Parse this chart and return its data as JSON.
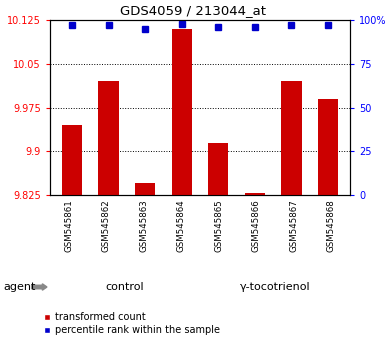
{
  "title": "GDS4059 / 213044_at",
  "samples": [
    "GSM545861",
    "GSM545862",
    "GSM545863",
    "GSM545864",
    "GSM545865",
    "GSM545866",
    "GSM545867",
    "GSM545868"
  ],
  "red_values": [
    9.945,
    10.02,
    9.845,
    10.11,
    9.915,
    9.828,
    10.02,
    9.99
  ],
  "blue_values": [
    97,
    97,
    95,
    98,
    96,
    96,
    97,
    97
  ],
  "ylim_left": [
    9.825,
    10.125
  ],
  "ylim_right": [
    0,
    100
  ],
  "yticks_left": [
    9.825,
    9.9,
    9.975,
    10.05,
    10.125
  ],
  "yticks_right": [
    0,
    25,
    50,
    75,
    100
  ],
  "ytick_labels_left": [
    "9.825",
    "9.9",
    "9.975",
    "10.05",
    "10.125"
  ],
  "ytick_labels_right": [
    "0",
    "25",
    "50",
    "75",
    "100%"
  ],
  "groups": [
    {
      "label": "control",
      "color_light": "#ccffcc",
      "color_dark": "#66ee66"
    },
    {
      "label": "γ-tocotrienol",
      "color_light": "#66ee66",
      "color_dark": "#66ee66"
    }
  ],
  "agent_label": "agent",
  "bar_color": "#cc0000",
  "dot_color": "#0000cc",
  "bar_width": 0.55,
  "legend_red_label": "transformed count",
  "legend_blue_label": "percentile rank within the sample",
  "grid_yticks": [
    9.9,
    9.975,
    10.05
  ],
  "xticklabel_bg": "#d0d0d0",
  "group_colors": [
    "#bbffbb",
    "#55ee55"
  ]
}
